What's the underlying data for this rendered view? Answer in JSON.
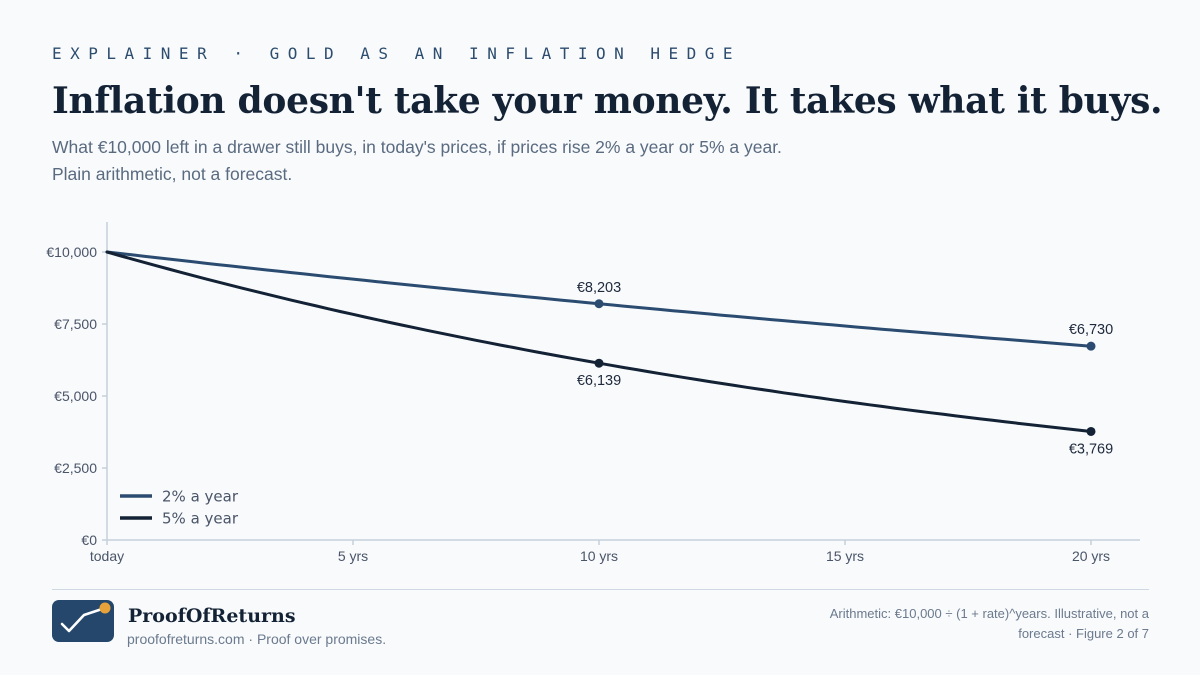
{
  "header": {
    "kicker": "EXPLAINER · GOLD AS AN INFLATION HEDGE",
    "title": "Inflation doesn't take your money. It takes what it buys.",
    "subtitle_line1": "What €10,000 left in a drawer still buys, in today's prices, if prices rise 2% a year or 5% a year.",
    "subtitle_line2": "Plain arithmetic, not a forecast."
  },
  "chart_data": {
    "type": "line",
    "title": "",
    "xlabel": "",
    "ylabel": "",
    "x_ticks": [
      {
        "x": 0,
        "label": "today"
      },
      {
        "x": 5,
        "label": "5 yrs"
      },
      {
        "x": 10,
        "label": "10 yrs"
      },
      {
        "x": 15,
        "label": "15 yrs"
      },
      {
        "x": 20,
        "label": "20 yrs"
      }
    ],
    "y_ticks": [
      {
        "y": 0,
        "label": "€0"
      },
      {
        "y": 2500,
        "label": "€2,500"
      },
      {
        "y": 5000,
        "label": "€5,000"
      },
      {
        "y": 7500,
        "label": "€7,500"
      },
      {
        "y": 10000,
        "label": "€10,000"
      }
    ],
    "xlim": [
      0,
      20
    ],
    "ylim": [
      0,
      10000
    ],
    "grid": false,
    "legend_position": "bottom-left",
    "series": [
      {
        "name": "2% a year",
        "rate": 0.02,
        "color": "#2b4c70",
        "x": [
          0,
          2,
          4,
          6,
          8,
          10,
          12,
          14,
          16,
          18,
          20
        ],
        "values": [
          10000,
          9612,
          9238,
          8880,
          8535,
          8203,
          7885,
          7579,
          7284,
          7002,
          6730
        ],
        "labels": [
          {
            "x": 10,
            "text": "€8,203",
            "position": "above"
          },
          {
            "x": 20,
            "text": "€6,730",
            "position": "above"
          }
        ]
      },
      {
        "name": "5% a year",
        "rate": 0.05,
        "color": "#142235",
        "x": [
          0,
          2,
          4,
          6,
          8,
          10,
          12,
          14,
          16,
          18,
          20
        ],
        "values": [
          10000,
          9070,
          8227,
          7462,
          6768,
          6139,
          5568,
          5051,
          4581,
          4155,
          3769
        ],
        "labels": [
          {
            "x": 10,
            "text": "€6,139",
            "position": "below"
          },
          {
            "x": 20,
            "text": "€3,769",
            "position": "below"
          }
        ]
      }
    ]
  },
  "footer": {
    "brand_name": "ProofOfReturns",
    "brand_tagline": "proofofreturns.com · Proof over promises.",
    "note_line1": "Arithmetic: €10,000 ÷ (1 + rate)^years. Illustrative, not a",
    "note_line2": "forecast · Figure 2 of 7"
  },
  "colors": {
    "accent": "#2b4c70",
    "dark": "#142235",
    "logo_dot": "#e8a23a"
  }
}
